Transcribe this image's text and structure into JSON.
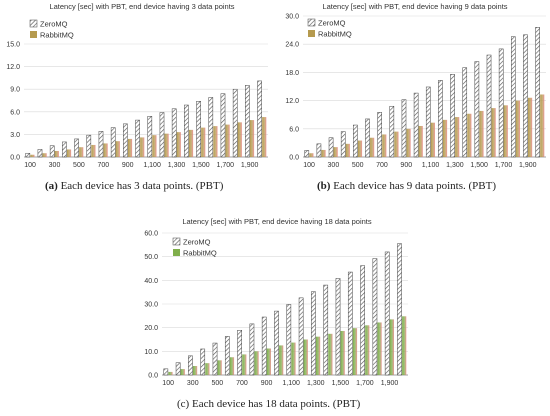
{
  "chart_data": [
    {
      "type": "bar",
      "title": "Latency [sec] with PBT, end device having 3 data points",
      "x": [
        100,
        200,
        300,
        400,
        500,
        600,
        700,
        800,
        900,
        1000,
        1100,
        1200,
        1300,
        1400,
        1500,
        1600,
        1700,
        1800,
        1900,
        2000
      ],
      "x_tick_labels": [
        "100",
        "300",
        "500",
        "700",
        "900",
        "1,100",
        "1,300",
        "1,500",
        "1,700",
        "1,900"
      ],
      "series": [
        {
          "name": "ZeroMQ",
          "values": [
            0.5,
            1.0,
            1.5,
            2.0,
            2.4,
            2.9,
            3.4,
            3.9,
            4.4,
            4.9,
            5.4,
            5.9,
            6.4,
            6.9,
            7.4,
            7.9,
            8.4,
            9.0,
            9.5,
            10.1
          ]
        },
        {
          "name": "RabbitMQ",
          "values": [
            0.3,
            0.5,
            0.8,
            1.0,
            1.3,
            1.6,
            1.8,
            2.1,
            2.4,
            2.6,
            2.9,
            3.1,
            3.3,
            3.6,
            3.9,
            4.1,
            4.3,
            4.6,
            4.9,
            5.3
          ]
        }
      ],
      "ylim": [
        0,
        15
      ],
      "y_ticks": [
        "0.0",
        "3.0",
        "6.0",
        "9.0",
        "12.0",
        "15.0"
      ],
      "grid": true,
      "legend": "top-left",
      "colors": {
        "ZeroMQ": "#5a5a5a",
        "RabbitMQ": "#b59a4e"
      }
    },
    {
      "type": "bar",
      "title": "Latency [sec] with PBT, end device having 9 data points",
      "x": [
        100,
        200,
        300,
        400,
        500,
        600,
        700,
        800,
        900,
        1000,
        1100,
        1200,
        1300,
        1400,
        1500,
        1600,
        1700,
        1800,
        1900,
        2000
      ],
      "x_tick_labels": [
        "100",
        "300",
        "500",
        "700",
        "900",
        "1,100",
        "1,300",
        "1,500",
        "1,700",
        "1,900"
      ],
      "series": [
        {
          "name": "ZeroMQ",
          "values": [
            1.4,
            2.8,
            4.1,
            5.4,
            6.8,
            8.1,
            9.5,
            10.8,
            12.2,
            13.6,
            14.9,
            16.3,
            17.6,
            19.0,
            20.3,
            21.7,
            23.0,
            25.6,
            26.0,
            27.6
          ]
        },
        {
          "name": "RabbitMQ",
          "values": [
            0.8,
            1.5,
            2.1,
            2.8,
            3.5,
            4.1,
            4.8,
            5.4,
            6.0,
            6.6,
            7.3,
            7.9,
            8.5,
            9.2,
            9.8,
            10.4,
            11.0,
            12.0,
            12.6,
            13.3
          ]
        }
      ],
      "ylim": [
        0,
        30
      ],
      "y_ticks": [
        "0.0",
        "6.0",
        "12.0",
        "18.0",
        "24.0",
        "30.0"
      ],
      "grid": true,
      "legend": "top-left",
      "colors": {
        "ZeroMQ": "#5a5a5a",
        "RabbitMQ": "#b59a4e"
      }
    },
    {
      "type": "bar",
      "title": "Latency [sec] with PBT, end device having 18 data points",
      "x": [
        100,
        200,
        300,
        400,
        500,
        600,
        700,
        800,
        900,
        1000,
        1100,
        1200,
        1300,
        1400,
        1500,
        1600,
        1700,
        1800,
        1900,
        2000
      ],
      "x_tick_labels": [
        "100",
        "300",
        "500",
        "700",
        "900",
        "1,100",
        "1,300",
        "1,500",
        "1,700",
        "1,900"
      ],
      "series": [
        {
          "name": "ZeroMQ",
          "values": [
            2.6,
            5.2,
            8.1,
            11.0,
            13.5,
            16.3,
            18.9,
            21.6,
            24.5,
            27.0,
            29.8,
            32.6,
            35.2,
            38.0,
            40.8,
            43.5,
            46.2,
            49.2,
            52.0,
            55.5
          ]
        },
        {
          "name": "RabbitMQ",
          "values": [
            1.3,
            2.5,
            3.8,
            5.0,
            6.2,
            7.5,
            8.7,
            10.0,
            11.2,
            12.5,
            13.7,
            15.0,
            16.2,
            17.4,
            18.6,
            19.8,
            21.0,
            22.2,
            23.5,
            24.8
          ]
        }
      ],
      "ylim": [
        0,
        60
      ],
      "y_ticks": [
        "0.0",
        "10.0",
        "20.0",
        "30.0",
        "40.0",
        "50.0",
        "60.0"
      ],
      "grid": true,
      "legend": "top-left",
      "colors": {
        "ZeroMQ": "#5a5a5a",
        "RabbitMQ": "#7fae4b"
      }
    }
  ],
  "captions": [
    {
      "letter": "(a)",
      "text": " Each device has 3 data points. (PBT)"
    },
    {
      "letter": "(b)",
      "text": " Each device has 9 data points. (PBT)"
    },
    {
      "letter": "(c)",
      "text": " Each device has 18 data points. (PBT)"
    }
  ]
}
